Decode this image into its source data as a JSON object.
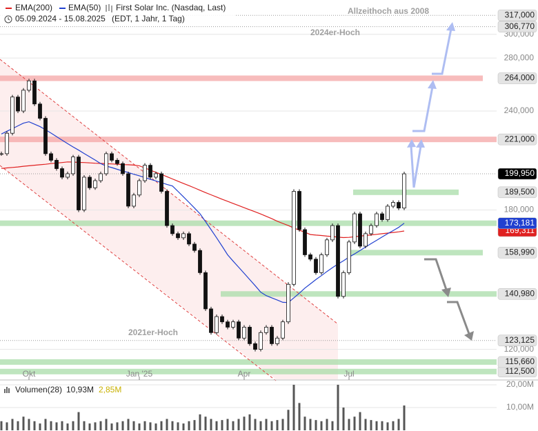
{
  "chart_data": {
    "type": "candlestick",
    "title": "First Solar Inc. (Nasdaq, Last)",
    "date_range": "05.09.2024 - 15.08.2025",
    "period_note": "(EDT, 1 Jahr, 1 Tag)",
    "log_scale": true,
    "grid": true,
    "up_color": "#ffffff",
    "down_color": "#111111",
    "categories": [
      null,
      null,
      null,
      null,
      null,
      "Okt",
      null,
      null,
      null,
      null,
      null,
      null,
      null,
      null,
      null,
      null,
      null,
      null,
      null,
      null,
      null,
      null,
      null,
      null,
      null,
      "Jan '25",
      null,
      null,
      null,
      null,
      null,
      null,
      null,
      null,
      null,
      null,
      null,
      null,
      null,
      null,
      null,
      null,
      null,
      null,
      "Apr",
      null,
      null,
      null,
      null,
      null,
      null,
      null,
      null,
      null,
      null,
      null,
      null,
      null,
      null,
      null,
      null,
      null,
      null,
      "Jul",
      null,
      null,
      null,
      null,
      null,
      null,
      null,
      null,
      null,
      null
    ],
    "close": [
      212000,
      225000,
      250000,
      240000,
      255000,
      262000,
      245000,
      235000,
      212000,
      208000,
      203000,
      198000,
      200000,
      210000,
      180000,
      198000,
      192000,
      196000,
      200000,
      212000,
      208000,
      206000,
      200000,
      182000,
      188000,
      196000,
      205000,
      198000,
      200000,
      190000,
      172000,
      168000,
      166000,
      168000,
      163000,
      160000,
      150000,
      135000,
      126000,
      132000,
      130000,
      128000,
      130000,
      124000,
      128000,
      122000,
      120000,
      126000,
      128000,
      122000,
      124000,
      130000,
      145000,
      190000,
      170000,
      158000,
      156000,
      150000,
      158000,
      165000,
      172000,
      140000,
      150000,
      164000,
      178000,
      162000,
      168000,
      172000,
      178000,
      175000,
      182000,
      184000,
      181000,
      199950
    ],
    "series": [
      {
        "name": "EMA(200)",
        "color": "#e02020",
        "values": [
          203100,
          203400,
          203700,
          204000,
          204400,
          204700,
          205000,
          205300,
          205600,
          206000,
          206300,
          206600,
          207000,
          206900,
          206700,
          206600,
          206400,
          206200,
          206100,
          205900,
          205800,
          205600,
          205400,
          205300,
          205100,
          204700,
          203400,
          202100,
          200800,
          199600,
          198300,
          197000,
          195700,
          194400,
          193200,
          191900,
          190600,
          189300,
          188100,
          186900,
          185700,
          184600,
          183400,
          182300,
          181200,
          180100,
          179000,
          177900,
          176700,
          175500,
          174200,
          173100,
          172000,
          170800,
          169700,
          168700,
          167600,
          167300,
          167100,
          166800,
          166600,
          166300,
          166100,
          166200,
          166500,
          166800,
          167100,
          167400,
          167700,
          168000,
          168300,
          168600,
          168900,
          169311
        ]
      },
      {
        "name": "EMA(50)",
        "color": "#2040d0",
        "values": [
          224500,
          226300,
          228000,
          229900,
          231700,
          232600,
          231000,
          229400,
          227300,
          225100,
          222800,
          220500,
          218300,
          216200,
          214200,
          212100,
          210100,
          208100,
          206000,
          204500,
          203600,
          202600,
          201600,
          200700,
          199700,
          198800,
          197800,
          196800,
          195900,
          194900,
          193900,
          193000,
          190000,
          187000,
          184000,
          181000,
          178000,
          174000,
          170000,
          166000,
          162000,
          158000,
          155100,
          152400,
          149700,
          147000,
          144400,
          141700,
          140300,
          139400,
          138500,
          137600,
          137500,
          139400,
          141300,
          143400,
          145200,
          147000,
          148700,
          150500,
          152200,
          153800,
          155300,
          156900,
          158400,
          160000,
          161600,
          163200,
          164800,
          166400,
          168000,
          169500,
          171100,
          173181
        ]
      }
    ],
    "ylim": [
      110000,
      331500
    ],
    "yticks": [
      {
        "value": 120000,
        "label": "120,000"
      },
      {
        "value": 180000,
        "label": "180,000"
      },
      {
        "value": 240000,
        "label": "240,000"
      },
      {
        "value": 280000,
        "label": "280,000"
      },
      {
        "value": 300000,
        "label": "300,000"
      }
    ],
    "levels": [
      {
        "value": 317000,
        "label": "317,000",
        "style": "dotted",
        "tag_color": "#e4e4e4",
        "text_color": "#222"
      },
      {
        "value": 306770,
        "label": "306,770",
        "style": "dotted",
        "tag_color": "#e4e4e4",
        "text_color": "#222"
      },
      {
        "value": 264000,
        "label": "264,000",
        "style": "band",
        "band_color": "#f4a6a6",
        "tag_color": "#e4e4e4",
        "text_color": "#222"
      },
      {
        "value": 221000,
        "label": "221,000",
        "style": "band",
        "band_color": "#f4a6a6",
        "tag_color": "#e4e4e4",
        "text_color": "#222"
      },
      {
        "value": 199950,
        "label": "199,950",
        "style": "dotted",
        "tag_color": "#000000",
        "text_color": "#fff"
      },
      {
        "value": 189500,
        "label": "189,500",
        "style": "band",
        "band_color": "#a8dca8",
        "tag_color": "#e4e4e4",
        "text_color": "#222"
      },
      {
        "value": 173181,
        "label": "173,181",
        "style": "band",
        "band_color": "#a8dca8",
        "tag_color": "#2040d0",
        "text_color": "#fff"
      },
      {
        "value": 169311,
        "label": "169,311",
        "style": "none",
        "tag_color": "#e02020",
        "text_color": "#fff"
      },
      {
        "value": 158990,
        "label": "158,990",
        "style": "band",
        "band_color": "#a8dca8",
        "tag_color": "#e4e4e4",
        "text_color": "#222"
      },
      {
        "value": 140980,
        "label": "140,980",
        "style": "band",
        "band_color": "#a8dca8",
        "tag_color": "#e4e4e4",
        "text_color": "#222"
      },
      {
        "value": 123125,
        "label": "123,125",
        "style": "dotted",
        "tag_color": "#e4e4e4",
        "text_color": "#222"
      },
      {
        "value": 115660,
        "label": "115,660",
        "style": "band",
        "band_color": "#a8dca8",
        "tag_color": "#e4e4e4",
        "text_color": "#222"
      },
      {
        "value": 112500,
        "label": "112,500",
        "style": "band",
        "band_color": "#a8dca8",
        "tag_color": "#e4e4e4",
        "text_color": "#222"
      }
    ],
    "annotations": [
      "Allzeithoch aus 2008",
      "2024er-Hoch",
      "2021er-Hoch"
    ],
    "volume": {
      "title": "Volumen(28)",
      "readouts": [
        "10,93M",
        "2,85M"
      ],
      "color": "#555555",
      "ylim": [
        0,
        21.8
      ],
      "yticks": [
        {
          "value": 10,
          "label": "10,00M"
        },
        {
          "value": 20,
          "label": "20,00M"
        }
      ],
      "values": [
        4,
        3.5,
        5,
        4,
        6,
        5,
        4,
        3,
        5,
        4,
        3.5,
        4,
        3,
        4,
        8,
        4,
        3,
        3.5,
        4,
        5,
        3,
        3.5,
        4,
        5,
        4,
        3,
        4,
        3.5,
        3,
        4,
        5,
        4,
        3.5,
        3,
        4,
        4.5,
        7,
        6,
        5,
        4,
        4.5,
        5,
        4,
        5,
        6,
        7,
        5,
        4,
        5,
        4,
        4.5,
        5,
        9,
        20,
        12,
        6,
        5,
        4.5,
        4,
        5,
        4,
        20,
        10,
        5,
        6,
        8,
        5,
        4.5,
        4,
        4,
        3.5,
        4,
        5,
        10.9
      ]
    }
  }
}
